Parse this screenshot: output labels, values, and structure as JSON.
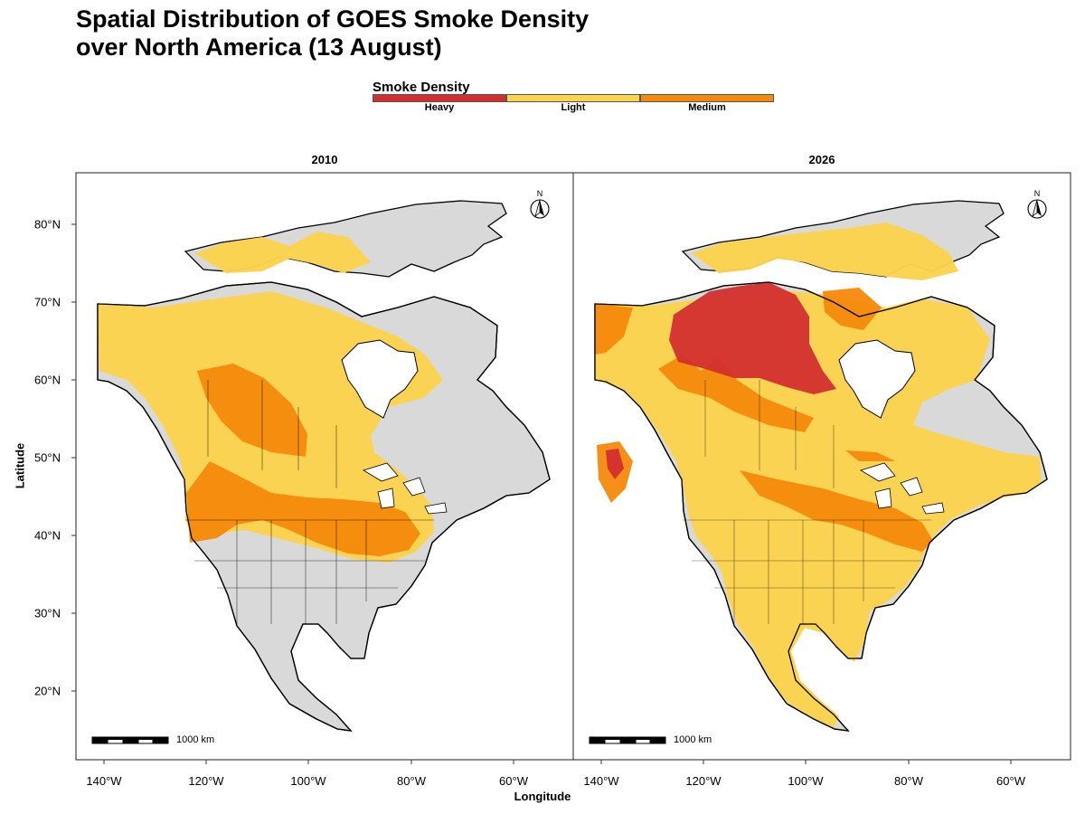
{
  "title_line1": "Spatial Distribution of GOES Smoke Density",
  "title_line2": "over North America (13 August)",
  "legend": {
    "title": "Smoke Density",
    "items": [
      {
        "label": "Heavy",
        "color": "#d32f2f"
      },
      {
        "label": "Light",
        "color": "#fcd34d"
      },
      {
        "label": "Medium",
        "color": "#f4890b"
      }
    ]
  },
  "colors": {
    "land": "#d9d9d9",
    "heavy": "#d32f2f",
    "medium": "#f4890b",
    "light": "#fcd34d",
    "water": "#ffffff"
  },
  "panels": [
    {
      "year": "2010",
      "scale_label": "1000 km",
      "north_label": "N"
    },
    {
      "year": "2026",
      "scale_label": "1000 km",
      "north_label": "N"
    }
  ],
  "axes": {
    "xlabel": "Longitude",
    "ylabel": "Latitude",
    "lon_ticks": [
      "140°W",
      "120°W",
      "100°W",
      "80°W",
      "60°W"
    ],
    "lat_ticks": [
      "80°N",
      "70°N",
      "60°N",
      "50°N",
      "40°N",
      "30°N",
      "20°N"
    ]
  }
}
